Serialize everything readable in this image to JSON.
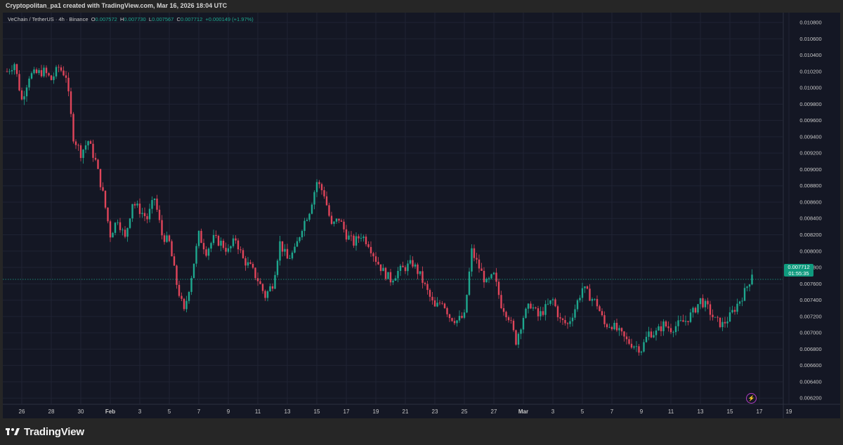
{
  "header": {
    "credit": "Cryptopolitan_pa1 created with TradingView.com, Mar 16, 2026 18:04 UTC"
  },
  "legend": {
    "symbol": "VeChain / TetherUS · 4h · Binance",
    "o_label": "O",
    "o_value": "0.007572",
    "h_label": "H",
    "h_value": "0.007730",
    "l_label": "L",
    "l_value": "0.007567",
    "c_label": "C",
    "c_value": "0.007712",
    "change": "+0.000149 (+1.97%)"
  },
  "price_badge": {
    "price": "0.007712",
    "countdown": "01:55:35"
  },
  "footer": {
    "brand": "TradingView"
  },
  "icons": {
    "alert": "lightning-icon",
    "logo": "tradingview-logo-icon"
  },
  "colors": {
    "up": "#1ea88f",
    "down": "#e0455a",
    "background": "#141724",
    "accent": "#0f9a7e"
  },
  "chart_data": {
    "type": "candlestick",
    "title": "VeChain / TetherUS · 4h · Binance",
    "ylim": [
      0.0062,
      0.0109
    ],
    "y_ticks": [
      "0.010800",
      "0.010600",
      "0.010400",
      "0.010200",
      "0.010000",
      "0.009800",
      "0.009600",
      "0.009400",
      "0.009200",
      "0.009000",
      "0.008800",
      "0.008600",
      "0.008400",
      "0.008200",
      "0.008000",
      "0.007800",
      "0.007600",
      "0.007400",
      "0.007200",
      "0.007000",
      "0.006800",
      "0.006600",
      "0.006400",
      "0.006200"
    ],
    "x_ticks": [
      "26",
      "28",
      "30",
      "Feb",
      "3",
      "5",
      "7",
      "9",
      "11",
      "13",
      "15",
      "17",
      "19",
      "21",
      "23",
      "25",
      "27",
      "Mar",
      "3",
      "5",
      "7",
      "9",
      "11",
      "13",
      "15",
      "17",
      "19"
    ],
    "last_price": 0.007712,
    "trajectory_close": [
      [
        "Jan 25 00:00",
        0.0102
      ],
      [
        "Jan 25 12:00",
        0.0103
      ],
      [
        "Jan 26 00:00",
        0.00985
      ],
      [
        "Jan 26 12:00",
        0.01015
      ],
      [
        "Jan 27 12:00",
        0.0102
      ],
      [
        "Jan 28 00:00",
        0.0101
      ],
      [
        "Jan 28 12:00",
        0.01025
      ],
      [
        "Jan 29 00:00",
        0.01015
      ],
      [
        "Jan 29 12:00",
        0.0094
      ],
      [
        "Jan 30 00:00",
        0.0092
      ],
      [
        "Jan 30 12:00",
        0.00935
      ],
      [
        "Jan 31 00:00",
        0.0091
      ],
      [
        "Jan 31 12:00",
        0.0087
      ],
      [
        "Feb 1 00:00",
        0.0082
      ],
      [
        "Feb 1 12:00",
        0.0084
      ],
      [
        "Feb 2 00:00",
        0.00815
      ],
      [
        "Feb 2 12:00",
        0.0086
      ],
      [
        "Feb 3 00:00",
        0.0085
      ],
      [
        "Feb 3 12:00",
        0.0084
      ],
      [
        "Feb 4 00:00",
        0.00865
      ],
      [
        "Feb 4 12:00",
        0.0082
      ],
      [
        "Feb 5 00:00",
        0.0081
      ],
      [
        "Feb 5 12:00",
        0.0076
      ],
      [
        "Feb 6 00:00",
        0.00725
      ],
      [
        "Feb 6 12:00",
        0.0077
      ],
      [
        "Feb 7 00:00",
        0.0082
      ],
      [
        "Feb 7 12:00",
        0.008
      ],
      [
        "Feb 8 00:00",
        0.00815
      ],
      [
        "Feb 8 12:00",
        0.0081
      ],
      [
        "Feb 9 00:00",
        0.008
      ],
      [
        "Feb 9 12:00",
        0.00815
      ],
      [
        "Feb 10 00:00",
        0.0079
      ],
      [
        "Feb 10 12:00",
        0.0078
      ],
      [
        "Feb 11 00:00",
        0.00765
      ],
      [
        "Feb 11 12:00",
        0.00745
      ],
      [
        "Feb 12 00:00",
        0.0076
      ],
      [
        "Feb 12 12:00",
        0.0081
      ],
      [
        "Feb 13 00:00",
        0.0079
      ],
      [
        "Feb 13 12:00",
        0.008
      ],
      [
        "Feb 14 00:00",
        0.0083
      ],
      [
        "Feb 14 12:00",
        0.0085
      ],
      [
        "Feb 15 00:00",
        0.00885
      ],
      [
        "Feb 15 12:00",
        0.0087
      ],
      [
        "Feb 16 00:00",
        0.0083
      ],
      [
        "Feb 16 12:00",
        0.0084
      ],
      [
        "Feb 17 00:00",
        0.0082
      ],
      [
        "Feb 17 12:00",
        0.0081
      ],
      [
        "Feb 18 00:00",
        0.0082
      ],
      [
        "Feb 18 12:00",
        0.0081
      ],
      [
        "Feb 19 00:00",
        0.0079
      ],
      [
        "Feb 19 12:00",
        0.00775
      ],
      [
        "Feb 20 00:00",
        0.00765
      ],
      [
        "Feb 20 12:00",
        0.00775
      ],
      [
        "Feb 21 00:00",
        0.0078
      ],
      [
        "Feb 21 12:00",
        0.00785
      ],
      [
        "Feb 22 00:00",
        0.0077
      ],
      [
        "Feb 22 12:00",
        0.0075
      ],
      [
        "Feb 23 00:00",
        0.0073
      ],
      [
        "Feb 23 12:00",
        0.0074
      ],
      [
        "Feb 24 00:00",
        0.0072
      ],
      [
        "Feb 24 12:00",
        0.00715
      ],
      [
        "Feb 25 00:00",
        0.0072
      ],
      [
        "Feb 25 12:00",
        0.008
      ],
      [
        "Feb 26 00:00",
        0.0078
      ],
      [
        "Feb 26 12:00",
        0.0076
      ],
      [
        "Feb 27 00:00",
        0.0077
      ],
      [
        "Feb 27 12:00",
        0.00735
      ],
      [
        "Feb 28 00:00",
        0.0072
      ],
      [
        "Feb 28 12:00",
        0.0069
      ],
      [
        "Mar 1 00:00",
        0.0072
      ],
      [
        "Mar 1 12:00",
        0.00735
      ],
      [
        "Mar 2 00:00",
        0.0072
      ],
      [
        "Mar 2 12:00",
        0.0073
      ],
      [
        "Mar 3 00:00",
        0.0074
      ],
      [
        "Mar 3 12:00",
        0.00715
      ],
      [
        "Mar 4 00:00",
        0.0071
      ],
      [
        "Mar 4 12:00",
        0.0073
      ],
      [
        "Mar 5 00:00",
        0.00755
      ],
      [
        "Mar 5 12:00",
        0.00745
      ],
      [
        "Mar 6 00:00",
        0.00735
      ],
      [
        "Mar 6 12:00",
        0.0071
      ],
      [
        "Mar 7 00:00",
        0.0071
      ],
      [
        "Mar 7 12:00",
        0.007
      ],
      [
        "Mar 8 00:00",
        0.0069
      ],
      [
        "Mar 8 12:00",
        0.00685
      ],
      [
        "Mar 9 00:00",
        0.0068
      ],
      [
        "Mar 9 12:00",
        0.007
      ],
      [
        "Mar 10 00:00",
        0.007
      ],
      [
        "Mar 10 12:00",
        0.0071
      ],
      [
        "Mar 11 00:00",
        0.00705
      ],
      [
        "Mar 11 12:00",
        0.0071
      ],
      [
        "Mar 12 00:00",
        0.00715
      ],
      [
        "Mar 12 12:00",
        0.00725
      ],
      [
        "Mar 13 00:00",
        0.0074
      ],
      [
        "Mar 13 12:00",
        0.0073
      ],
      [
        "Mar 14 00:00",
        0.00715
      ],
      [
        "Mar 14 12:00",
        0.0071
      ],
      [
        "Mar 15 00:00",
        0.0072
      ],
      [
        "Mar 15 12:00",
        0.00735
      ],
      [
        "Mar 16 00:00",
        0.0075
      ],
      [
        "Mar 16 12:00",
        0.00771
      ]
    ]
  }
}
